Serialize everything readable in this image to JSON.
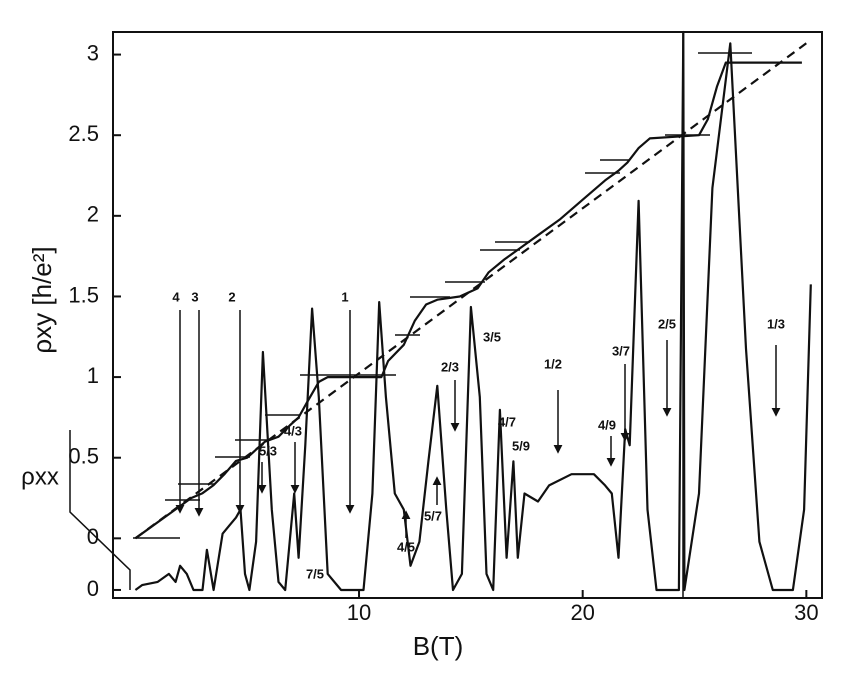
{
  "chart_data": {
    "type": "line",
    "x_label": "B(T)",
    "y_label": "ρxy [h/e²]",
    "y2_label": "ρxx",
    "xlim": [
      -1,
      30.7
    ],
    "xticks": [
      10,
      20,
      30
    ],
    "ylim": [
      -0.37,
      3.14
    ],
    "yticks": [
      0,
      0.5,
      1,
      1.5,
      2,
      2.5,
      3
    ],
    "y2lim": [
      -0.05,
      3.47
    ],
    "y2ticks": [
      0
    ],
    "series": [
      {
        "color": "#111111",
        "dashed": false,
        "x": [
          0,
          2,
          2.5,
          3,
          3.5,
          4,
          4.5,
          5,
          5.4,
          5.8,
          6.4,
          6.9,
          7.3,
          7.7,
          8.2,
          8.6,
          11,
          11.3,
          12,
          12.5,
          13,
          13.5,
          14.5,
          15.3,
          15.8,
          16.5,
          17.2,
          18,
          19,
          20,
          21,
          21.6,
          22,
          22.5,
          23,
          25.2,
          25.6,
          26,
          26.4,
          29.8
        ],
        "values": [
          0,
          0.2,
          0.25,
          0.28,
          0.33,
          0.4,
          0.48,
          0.5,
          0.55,
          0.6,
          0.63,
          0.7,
          0.75,
          0.85,
          0.97,
          1.0,
          1.0,
          1.1,
          1.2,
          1.35,
          1.45,
          1.48,
          1.5,
          1.55,
          1.65,
          1.73,
          1.8,
          1.88,
          1.98,
          2.1,
          2.22,
          2.28,
          2.33,
          2.42,
          2.48,
          2.5,
          2.6,
          2.8,
          2.95,
          2.95
        ]
      },
      {
        "color": "#111111",
        "dashed": true,
        "x": [
          0,
          30
        ],
        "values": [
          0,
          3.07
        ]
      },
      {
        "color": "#111111",
        "dashed": false,
        "axis": "y2",
        "x": [
          0,
          0.3,
          1,
          1.5,
          1.8,
          2,
          2.3,
          2.6,
          3,
          3.2,
          3.5,
          3.9,
          4.2,
          4.5,
          4.7,
          4.9,
          5.1,
          5.4,
          5.7,
          6.1,
          6.4,
          6.7,
          6.9,
          7.1,
          7.3,
          7.6,
          7.9,
          8.2,
          8.6,
          9.2,
          10.2,
          10.6,
          10.9,
          11.2,
          11.6,
          12,
          12.3,
          12.7,
          13.1,
          13.5,
          13.9,
          14.2,
          14.6,
          15,
          15.4,
          15.7,
          16,
          16.3,
          16.6,
          16.9,
          17.1,
          17.4,
          18,
          18.5,
          19.5,
          20.5,
          21,
          21.3,
          21.6,
          21.9,
          22.1,
          22.5,
          22.9,
          23.3,
          24.3,
          24.5,
          24.55,
          25.2,
          25.8,
          26.6,
          27.3,
          27.9,
          28.5,
          29.4,
          29.9,
          30.2
        ],
        "values": [
          0,
          0.03,
          0.05,
          0.1,
          0.05,
          0.15,
          0.1,
          0,
          0,
          0.25,
          0,
          0.35,
          0.4,
          0.45,
          0.5,
          0.1,
          0,
          0.3,
          1.48,
          0.5,
          0.05,
          0,
          0.3,
          0.6,
          0.2,
          0.9,
          1.75,
          1.2,
          0.1,
          0,
          0,
          0.6,
          1.79,
          1.2,
          0.6,
          0.5,
          0.15,
          0.3,
          0.8,
          1.27,
          0.5,
          0,
          0.1,
          1.76,
          1.2,
          0.1,
          0,
          1.12,
          0.2,
          0.8,
          0.2,
          0.6,
          0.55,
          0.65,
          0.72,
          0.72,
          0.65,
          0.6,
          0.2,
          1.0,
          0.9,
          2.42,
          0.5,
          0,
          0,
          3.47,
          0,
          0.6,
          2.5,
          3.4,
          1.5,
          0.3,
          0,
          0,
          0.5,
          1.9
        ]
      }
    ],
    "annotations": [
      "4",
      "3",
      "2",
      "5/3",
      "4/3",
      "1",
      "7/5",
      "4/5",
      "5/7",
      "2/3",
      "3/5",
      "4/7",
      "5/9",
      "1/2",
      "4/9",
      "3/7",
      "2/5",
      "1/3"
    ]
  }
}
